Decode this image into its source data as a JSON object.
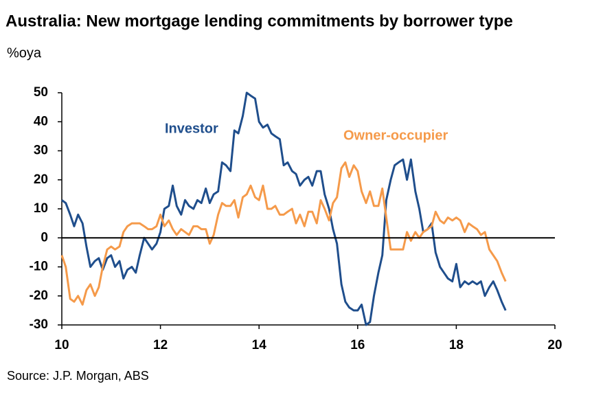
{
  "chart_data": {
    "type": "line",
    "title": "Australia: New mortgage lending commitments by borrower type",
    "subtitle": "%oya",
    "source": "Source: J.P. Morgan, ABS",
    "x": [
      10,
      10.08,
      10.17,
      10.25,
      10.33,
      10.42,
      10.5,
      10.58,
      10.67,
      10.75,
      10.83,
      10.92,
      11,
      11.08,
      11.17,
      11.25,
      11.33,
      11.42,
      11.5,
      11.58,
      11.67,
      11.75,
      11.83,
      11.92,
      12,
      12.08,
      12.17,
      12.25,
      12.33,
      12.42,
      12.5,
      12.58,
      12.67,
      12.75,
      12.83,
      12.92,
      13,
      13.08,
      13.17,
      13.25,
      13.33,
      13.42,
      13.5,
      13.58,
      13.67,
      13.75,
      13.83,
      13.92,
      14,
      14.08,
      14.17,
      14.25,
      14.33,
      14.42,
      14.5,
      14.58,
      14.67,
      14.75,
      14.83,
      14.92,
      15,
      15.08,
      15.17,
      15.25,
      15.33,
      15.42,
      15.5,
      15.58,
      15.67,
      15.75,
      15.83,
      15.92,
      16,
      16.08,
      16.17,
      16.25,
      16.33,
      16.42,
      16.5,
      16.58,
      16.67,
      16.75,
      16.83,
      16.92,
      17,
      17.08,
      17.17,
      17.25,
      17.33,
      17.42,
      17.5,
      17.58,
      17.67,
      17.75,
      17.83,
      17.92,
      18,
      18.08,
      18.17,
      18.25,
      18.33,
      18.42,
      18.5,
      18.58,
      18.67,
      18.75,
      18.83,
      18.92,
      19
    ],
    "series": [
      {
        "name": "Investor",
        "color": "#1f4e8c",
        "values": [
          13,
          12,
          8,
          4,
          8,
          5,
          -3,
          -10,
          -8,
          -7,
          -11,
          -7,
          -6,
          -10,
          -8,
          -14,
          -11,
          -10,
          -12,
          -6,
          0,
          -2,
          -4,
          -2,
          2,
          10,
          11,
          18,
          11,
          8,
          13,
          11,
          10,
          13,
          12,
          17,
          12,
          15,
          16,
          26,
          25,
          23,
          37,
          36,
          42,
          50,
          49,
          48,
          40,
          38,
          39,
          36,
          35,
          34,
          25,
          26,
          23,
          22,
          18,
          20,
          21,
          18,
          23,
          23,
          15,
          10,
          3,
          -2,
          -16,
          -22,
          -24,
          -25,
          -25,
          -23,
          -30,
          -29,
          -20,
          -12,
          -6,
          13,
          20,
          25,
          26,
          27,
          20,
          27,
          16,
          10,
          2,
          3,
          5,
          -5,
          -10,
          -12,
          -14,
          -15,
          -9,
          -17,
          -15,
          -16,
          -15,
          -16,
          -15,
          -20,
          -17,
          -15,
          -18,
          -22,
          -25
        ]
      },
      {
        "name": "Owner-occupier",
        "color": "#f59a4a",
        "values": [
          -6,
          -10,
          -21,
          -22,
          -20,
          -23,
          -18,
          -16,
          -20,
          -17,
          -10,
          -4,
          -3,
          -4,
          -3,
          2,
          4,
          5,
          5,
          5,
          4,
          3,
          3,
          4,
          8,
          4,
          6,
          3,
          1,
          3,
          2,
          1,
          4,
          4,
          3,
          3,
          -2,
          1,
          8,
          12,
          11,
          11,
          13,
          7,
          14,
          15,
          18,
          14,
          13,
          18,
          10,
          10,
          11,
          8,
          8,
          9,
          10,
          5,
          8,
          4,
          9,
          9,
          5,
          13,
          10,
          6,
          12,
          14,
          24,
          26,
          21,
          25,
          23,
          16,
          12,
          16,
          11,
          11,
          17,
          7,
          -4,
          -4,
          -4,
          -4,
          2,
          -1,
          2,
          0,
          2,
          3,
          4,
          9,
          6,
          5,
          7,
          6,
          7,
          6,
          2,
          5,
          4,
          3,
          1,
          2,
          -4,
          -6,
          -8,
          -12,
          -15
        ]
      }
    ],
    "xlim": [
      10,
      20
    ],
    "xticks": [
      10,
      12,
      14,
      16,
      18,
      20
    ],
    "ylim": [
      -30,
      50
    ],
    "yticks": [
      -30,
      -20,
      -10,
      0,
      10,
      20,
      30,
      40,
      50
    ],
    "reference_line": 0
  }
}
